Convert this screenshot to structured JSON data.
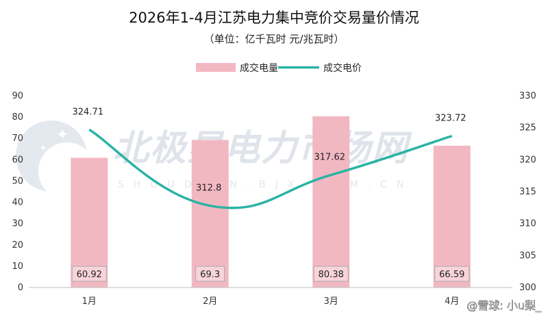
{
  "chart_data": {
    "type": "bar",
    "title": "2026年1-4月江苏电力集中竞价交易量价情况",
    "subtitle": "（单位：亿千瓦时 元/兆瓦时）",
    "categories": [
      "1月",
      "2月",
      "3月",
      "4月"
    ],
    "series": [
      {
        "name": "成交电量",
        "type": "bar",
        "axis": "left",
        "color": "#f2b8c2",
        "values": [
          60.92,
          69.3,
          80.38,
          66.59
        ],
        "labels": [
          "60.92",
          "69.3",
          "80.38",
          "66.59"
        ]
      },
      {
        "name": "成交电价",
        "type": "line",
        "axis": "right",
        "color": "#2ab3a4",
        "smooth": true,
        "values": [
          324.71,
          312.8,
          317.62,
          323.72
        ],
        "labels": [
          "324.71",
          "312.8",
          "317.62",
          "323.72"
        ]
      }
    ],
    "y_left": {
      "min": 0,
      "max": 90,
      "ticks": [
        "0",
        "10",
        "20",
        "30",
        "40",
        "50",
        "60",
        "70",
        "80",
        "90"
      ]
    },
    "y_right": {
      "min": 300,
      "max": 330,
      "ticks": [
        "300",
        "305",
        "310",
        "315",
        "320",
        "325",
        "330"
      ]
    },
    "grid": false,
    "legend": "top-center"
  },
  "watermark": {
    "text": "北极星电力市场网",
    "sub": "SHOUDIAN.BJX.COM.CN"
  },
  "corner_mark": "@雪球: 小u梨_"
}
